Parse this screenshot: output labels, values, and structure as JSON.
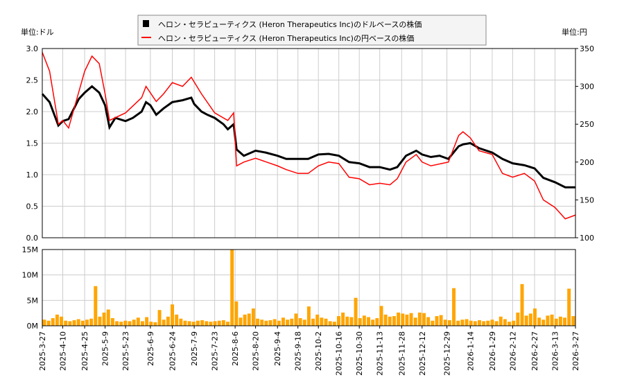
{
  "chart_data": [
    {
      "type": "line",
      "legend": [
        "ヘロン・セラピューティクス (Heron Therapeutics Inc)のドルベースの株価",
        "ヘロン・セラピューティクス (Heron Therapeutics Inc)の円ベースの株価"
      ],
      "legend_placement": "top-center",
      "ylabel_left": "単位:ドル",
      "ylabel_right": "単位:円",
      "ylim_left": [
        0,
        3.0
      ],
      "ylim_right": [
        100,
        350
      ],
      "yticks_left": [
        "0.0",
        "0.5",
        "1.0",
        "1.5",
        "2.0",
        "2.5",
        "3.0"
      ],
      "yticks_right": [
        "100",
        "150",
        "200",
        "250",
        "300",
        "350"
      ],
      "grid": true,
      "colors": {
        "usd": "#000000",
        "jpy": "#ff0000"
      },
      "series": [
        {
          "name": "ヘロン・セラピューティクス (Heron Therapeutics Inc)のドルベースの株価",
          "axis": "left",
          "points": [
            [
              "2025-3-27",
              2.28
            ],
            [
              "2025-4-1",
              2.15
            ],
            [
              "2025-4-7",
              1.78
            ],
            [
              "2025-4-10",
              1.85
            ],
            [
              "2025-4-14",
              1.88
            ],
            [
              "2025-4-21",
              2.2
            ],
            [
              "2025-4-25",
              2.3
            ],
            [
              "2025-4-30",
              2.4
            ],
            [
              "2025-5-5",
              2.3
            ],
            [
              "2025-5-9",
              2.1
            ],
            [
              "2025-5-12",
              1.75
            ],
            [
              "2025-5-16",
              1.9
            ],
            [
              "2025-5-23",
              1.85
            ],
            [
              "2025-5-28",
              1.9
            ],
            [
              "2025-6-3",
              2.0
            ],
            [
              "2025-6-6",
              2.15
            ],
            [
              "2025-6-9",
              2.1
            ],
            [
              "2025-6-13",
              1.95
            ],
            [
              "2025-6-18",
              2.05
            ],
            [
              "2025-6-24",
              2.15
            ],
            [
              "2025-7-1",
              2.18
            ],
            [
              "2025-7-7",
              2.22
            ],
            [
              "2025-7-9",
              2.12
            ],
            [
              "2025-7-14",
              2.0
            ],
            [
              "2025-7-18",
              1.95
            ],
            [
              "2025-7-23",
              1.9
            ],
            [
              "2025-7-29",
              1.8
            ],
            [
              "2025-8-1",
              1.72
            ],
            [
              "2025-8-5",
              1.8
            ],
            [
              "2025-8-7",
              1.4
            ],
            [
              "2025-8-12",
              1.3
            ],
            [
              "2025-8-20",
              1.38
            ],
            [
              "2025-8-27",
              1.35
            ],
            [
              "2025-9-4",
              1.3
            ],
            [
              "2025-9-10",
              1.25
            ],
            [
              "2025-9-18",
              1.25
            ],
            [
              "2025-9-25",
              1.25
            ],
            [
              "2025-10-2",
              1.32
            ],
            [
              "2025-10-9",
              1.33
            ],
            [
              "2025-10-16",
              1.3
            ],
            [
              "2025-10-23",
              1.2
            ],
            [
              "2025-10-30",
              1.18
            ],
            [
              "2025-11-6",
              1.12
            ],
            [
              "2025-11-13",
              1.12
            ],
            [
              "2025-11-20",
              1.08
            ],
            [
              "2025-11-25",
              1.12
            ],
            [
              "2025-12-1",
              1.3
            ],
            [
              "2025-12-8",
              1.38
            ],
            [
              "2025-12-12",
              1.32
            ],
            [
              "2025-12-18",
              1.28
            ],
            [
              "2025-12-24",
              1.3
            ],
            [
              "2025-12-30",
              1.25
            ],
            [
              "2026-1-6",
              1.45
            ],
            [
              "2026-1-9",
              1.48
            ],
            [
              "2026-1-14",
              1.5
            ],
            [
              "2026-1-20",
              1.42
            ],
            [
              "2026-1-29",
              1.35
            ],
            [
              "2026-2-5",
              1.25
            ],
            [
              "2026-2-12",
              1.18
            ],
            [
              "2026-2-20",
              1.15
            ],
            [
              "2026-2-27",
              1.1
            ],
            [
              "2026-3-5",
              0.95
            ],
            [
              "2026-3-13",
              0.88
            ],
            [
              "2026-3-20",
              0.8
            ],
            [
              "2026-3-27",
              0.8
            ]
          ]
        },
        {
          "name": "ヘロン・セラピューティクス (Heron Therapeutics Inc)の円ベースの株価",
          "axis": "right",
          "points": [
            [
              "2025-3-27",
              345
            ],
            [
              "2025-4-1",
              320
            ],
            [
              "2025-4-7",
              250
            ],
            [
              "2025-4-10",
              255
            ],
            [
              "2025-4-14",
              245
            ],
            [
              "2025-4-25",
              320
            ],
            [
              "2025-4-30",
              340
            ],
            [
              "2025-5-5",
              330
            ],
            [
              "2025-5-9",
              290
            ],
            [
              "2025-5-12",
              255
            ],
            [
              "2025-5-23",
              265
            ],
            [
              "2025-6-3",
              285
            ],
            [
              "2025-6-6",
              300
            ],
            [
              "2025-6-13",
              280
            ],
            [
              "2025-6-18",
              290
            ],
            [
              "2025-6-24",
              305
            ],
            [
              "2025-7-1",
              300
            ],
            [
              "2025-7-7",
              312
            ],
            [
              "2025-7-14",
              290
            ],
            [
              "2025-7-23",
              265
            ],
            [
              "2025-8-1",
              255
            ],
            [
              "2025-8-5",
              265
            ],
            [
              "2025-8-7",
              195
            ],
            [
              "2025-8-12",
              200
            ],
            [
              "2025-8-20",
              205
            ],
            [
              "2025-9-4",
              195
            ],
            [
              "2025-9-10",
              190
            ],
            [
              "2025-9-18",
              185
            ],
            [
              "2025-9-25",
              185
            ],
            [
              "2025-10-2",
              195
            ],
            [
              "2025-10-9",
              200
            ],
            [
              "2025-10-16",
              198
            ],
            [
              "2025-10-23",
              180
            ],
            [
              "2025-10-30",
              178
            ],
            [
              "2025-11-6",
              170
            ],
            [
              "2025-11-13",
              172
            ],
            [
              "2025-11-20",
              170
            ],
            [
              "2025-11-25",
              178
            ],
            [
              "2025-12-1",
              200
            ],
            [
              "2025-12-8",
              210
            ],
            [
              "2025-12-12",
              200
            ],
            [
              "2025-12-18",
              195
            ],
            [
              "2025-12-30",
              200
            ],
            [
              "2026-1-6",
              235
            ],
            [
              "2026-1-9",
              240
            ],
            [
              "2026-1-14",
              232
            ],
            [
              "2026-1-20",
              215
            ],
            [
              "2026-1-29",
              210
            ],
            [
              "2026-2-5",
              185
            ],
            [
              "2026-2-12",
              180
            ],
            [
              "2026-2-20",
              185
            ],
            [
              "2026-2-27",
              175
            ],
            [
              "2026-3-5",
              150
            ],
            [
              "2026-3-13",
              140
            ],
            [
              "2026-3-20",
              125
            ],
            [
              "2026-3-27",
              130
            ]
          ]
        }
      ]
    },
    {
      "type": "bar",
      "ylim": [
        0,
        15
      ],
      "yticks": [
        "0M",
        "5M",
        "10M",
        "15M"
      ],
      "color": "#ffa500",
      "date_range": [
        "2025-3-27",
        "2026-3-27"
      ],
      "volume_millions": [
        1.2,
        1.0,
        1.5,
        2.2,
        1.8,
        1.0,
        0.9,
        1.1,
        1.3,
        1.0,
        1.2,
        1.4,
        7.8,
        1.8,
        2.6,
        3.2,
        1.5,
        0.9,
        0.8,
        1.0,
        0.9,
        1.2,
        1.6,
        0.9,
        1.7,
        0.8,
        0.7,
        3.1,
        1.2,
        1.8,
        4.2,
        2.2,
        1.4,
        1.0,
        0.9,
        0.8,
        1.0,
        1.1,
        0.9,
        0.8,
        0.9,
        1.0,
        1.1,
        0.8,
        15.0,
        4.8,
        1.6,
        2.2,
        2.4,
        3.4,
        1.4,
        1.2,
        1.0,
        1.1,
        1.3,
        1.0,
        1.6,
        1.2,
        1.4,
        2.4,
        1.5,
        1.2,
        3.8,
        1.4,
        2.2,
        1.6,
        1.4,
        0.9,
        0.8,
        1.9,
        2.6,
        1.8,
        1.7,
        5.5,
        1.5,
        2.0,
        1.7,
        1.2,
        1.5,
        3.9,
        2.2,
        1.8,
        1.9,
        2.6,
        2.4,
        2.2,
        2.5,
        1.6,
        2.6,
        2.5,
        1.7,
        1.0,
        1.9,
        2.1,
        1.2,
        1.1,
        7.4,
        1.0,
        1.2,
        1.3,
        1.0,
        0.9,
        1.1,
        0.9,
        1.0,
        1.2,
        0.9,
        1.8,
        1.3,
        0.8,
        1.0,
        2.6,
        8.2,
        2.0,
        2.4,
        3.4,
        1.6,
        1.2,
        2.0,
        2.2,
        1.4,
        1.8,
        1.6,
        7.3,
        1.9
      ]
    }
  ],
  "x_ticks": [
    "2025-3-27",
    "2025-4-10",
    "2025-4-25",
    "2025-5-9",
    "2025-5-23",
    "2025-6-9",
    "2025-6-24",
    "2025-7-9",
    "2025-7-23",
    "2025-8-6",
    "2025-8-20",
    "2025-9-4",
    "2025-9-18",
    "2025-10-2",
    "2025-10-16",
    "2025-10-30",
    "2025-11-13",
    "2025-11-28",
    "2025-12-12",
    "2025-12-29",
    "2026-1-14",
    "2026-1-29",
    "2026-2-12",
    "2026-2-27",
    "2026-3-13",
    "2026-3-27"
  ]
}
